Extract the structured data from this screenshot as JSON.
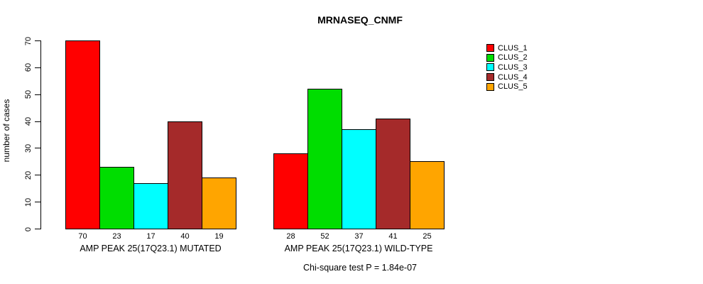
{
  "page": {
    "background": "#ffffff"
  },
  "chart_data": {
    "type": "bar",
    "title": "MRNASEQ_CNMF",
    "ylabel": "number of cases",
    "xlabel": "",
    "ylim": [
      0,
      70
    ],
    "yticks": [
      0,
      10,
      20,
      30,
      40,
      50,
      60,
      70
    ],
    "grid": false,
    "legend": [
      "CLUS_1",
      "CLUS_2",
      "CLUS_3",
      "CLUS_4",
      "CLUS_5"
    ],
    "legend_position": "top-right",
    "series_colors": [
      "#ff0000",
      "#00dd00",
      "#00ffff",
      "#a52a2a",
      "#ffa500"
    ],
    "groups": [
      {
        "label": "AMP PEAK 25(17Q23.1) MUTATED",
        "values": [
          70,
          23,
          17,
          40,
          19
        ]
      },
      {
        "label": "AMP PEAK 25(17Q23.1) WILD-TYPE",
        "values": [
          28,
          52,
          37,
          41,
          25
        ]
      }
    ],
    "annotation": "Chi-square test P = 1.84e-07"
  }
}
